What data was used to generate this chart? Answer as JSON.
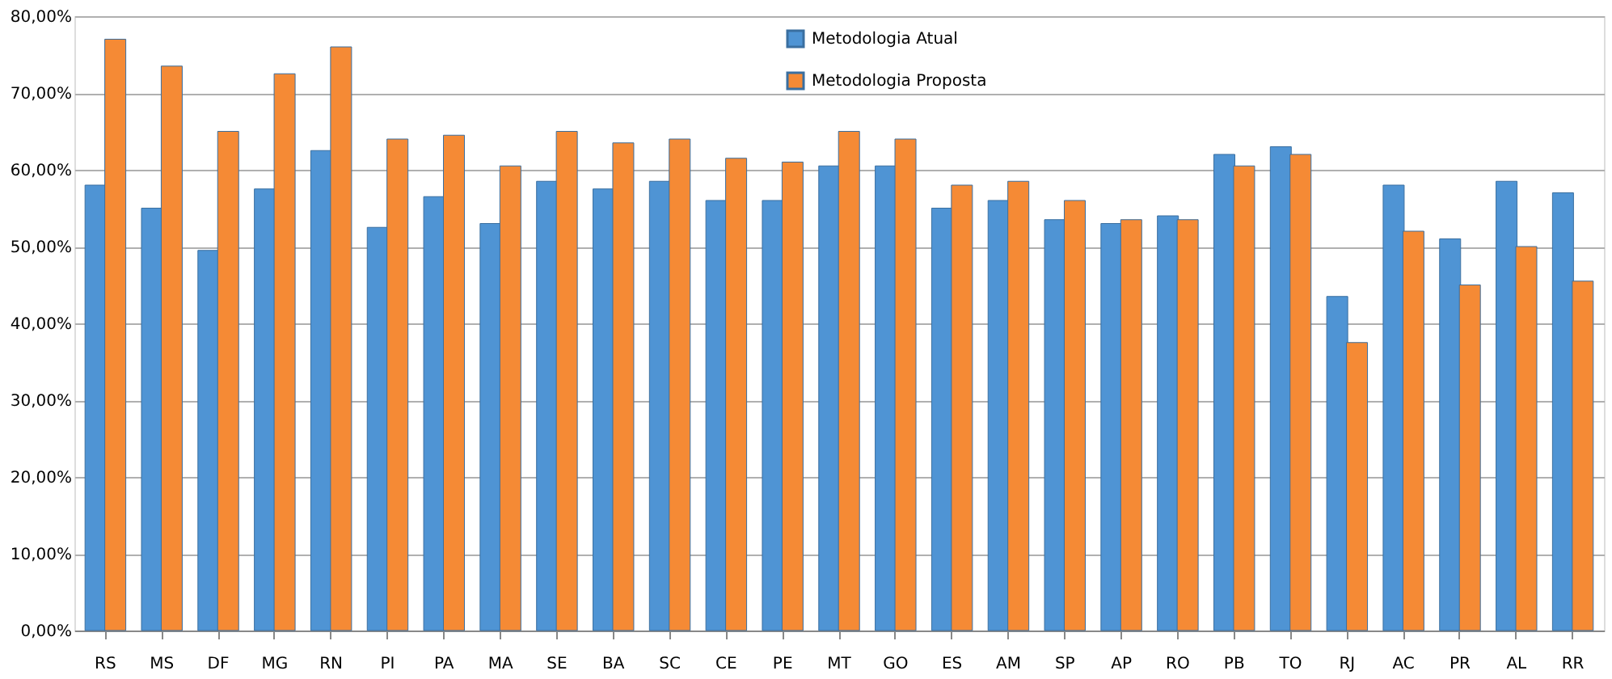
{
  "chart_data": {
    "type": "bar",
    "categories": [
      "RS",
      "MS",
      "DF",
      "MG",
      "RN",
      "PI",
      "PA",
      "MA",
      "SE",
      "BA",
      "SC",
      "CE",
      "PE",
      "MT",
      "GO",
      "ES",
      "AM",
      "SP",
      "AP",
      "RO",
      "PB",
      "TO",
      "RJ",
      "AC",
      "PR",
      "AL",
      "RR"
    ],
    "series": [
      {
        "name": "Metodologia Atual",
        "color": "#4f94d4",
        "values": [
          58,
          55,
          49.5,
          57.5,
          62.5,
          52.5,
          56.5,
          53,
          58.5,
          57.5,
          58.5,
          56,
          56,
          60.5,
          60.5,
          55,
          56,
          53.5,
          53,
          54,
          62,
          63,
          43.5,
          58,
          51,
          58.5,
          57
        ]
      },
      {
        "name": "Metodologia Proposta",
        "color": "#f58a35",
        "values": [
          77,
          73.5,
          65,
          72.5,
          76,
          64,
          64.5,
          60.5,
          65,
          63.5,
          64,
          61.5,
          61,
          65,
          64,
          58,
          58.5,
          56,
          53.5,
          53.5,
          60.5,
          62,
          37.5,
          52,
          45,
          50,
          45.5
        ]
      }
    ],
    "ylim": [
      0,
      80
    ],
    "yticks": [
      {
        "value": 0,
        "label": "0,00%"
      },
      {
        "value": 10,
        "label": "10,00%"
      },
      {
        "value": 20,
        "label": "20,00%"
      },
      {
        "value": 30,
        "label": "30,00%"
      },
      {
        "value": 40,
        "label": "40,00%"
      },
      {
        "value": 50,
        "label": "50,00%"
      },
      {
        "value": 60,
        "label": "60,00%"
      },
      {
        "value": 70,
        "label": "70,00%"
      },
      {
        "value": 80,
        "label": "80,00%"
      }
    ],
    "grid": "y",
    "legend": "top"
  }
}
